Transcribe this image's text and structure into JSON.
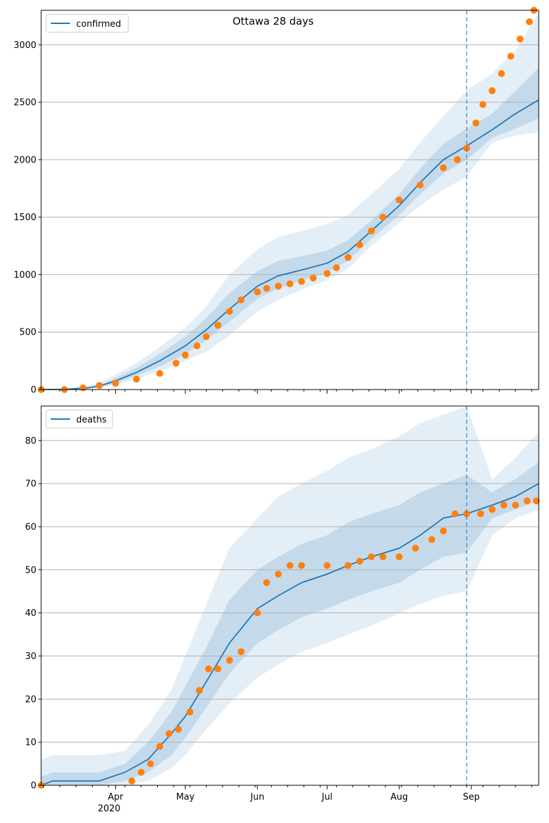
{
  "title": "Ottawa 28 days",
  "colors": {
    "model": "#1f77b4",
    "observed": "#ff7f0e",
    "band": "#1f77b4",
    "grid": "#b0b0b0",
    "forecast_line": "#1f77b4"
  },
  "x_axis": {
    "range": [
      "2020-02-29",
      "2020-09-30"
    ],
    "major_ticks": [
      {
        "date": "2020-04-01",
        "label": "Apr"
      },
      {
        "date": "2020-05-01",
        "label": "May"
      },
      {
        "date": "2020-06-01",
        "label": "Jun"
      },
      {
        "date": "2020-07-01",
        "label": "Jul"
      },
      {
        "date": "2020-08-01",
        "label": "Aug"
      },
      {
        "date": "2020-09-01",
        "label": "Sep"
      }
    ],
    "year_label": "2020",
    "forecast_start": "2020-08-30"
  },
  "chart_data": [
    {
      "type": "line",
      "legend": "confirmed",
      "legend_position": "upper-left",
      "grid": "horizontal",
      "ylim": [
        0,
        3300
      ],
      "yticks": [
        0,
        500,
        1000,
        1500,
        2000,
        2500,
        3000
      ],
      "model": {
        "x": [
          "2020-02-29",
          "2020-03-10",
          "2020-03-20",
          "2020-03-25",
          "2020-04-01",
          "2020-04-10",
          "2020-04-20",
          "2020-05-01",
          "2020-05-10",
          "2020-05-20",
          "2020-06-01",
          "2020-06-10",
          "2020-06-20",
          "2020-07-01",
          "2020-07-10",
          "2020-07-20",
          "2020-08-01",
          "2020-08-10",
          "2020-08-20",
          "2020-08-30",
          "2020-09-10",
          "2020-09-20",
          "2020-09-30"
        ],
        "y": [
          0,
          2,
          15,
          30,
          75,
          150,
          250,
          380,
          520,
          700,
          900,
          990,
          1040,
          1100,
          1200,
          1380,
          1600,
          1800,
          2000,
          2120,
          2260,
          2400,
          2520
        ],
        "band_outer_lo": [
          0,
          0,
          5,
          15,
          40,
          90,
          160,
          250,
          330,
          470,
          680,
          780,
          870,
          950,
          1050,
          1250,
          1450,
          1600,
          1740,
          1850,
          2150,
          2210,
          2240
        ],
        "band_outer_hi": [
          0,
          6,
          30,
          60,
          130,
          230,
          370,
          540,
          720,
          1000,
          1220,
          1330,
          1380,
          1440,
          1520,
          1700,
          1920,
          2150,
          2380,
          2600,
          2750,
          2950,
          3280
        ],
        "band_inner_lo": [
          0,
          1,
          10,
          22,
          55,
          120,
          200,
          310,
          430,
          590,
          790,
          880,
          950,
          1020,
          1120,
          1310,
          1520,
          1700,
          1880,
          2000,
          2190,
          2270,
          2360
        ],
        "band_inner_hi": [
          0,
          4,
          22,
          42,
          100,
          190,
          310,
          460,
          620,
          840,
          1030,
          1120,
          1160,
          1210,
          1300,
          1470,
          1700,
          1920,
          2140,
          2270,
          2400,
          2600,
          2800
        ]
      },
      "observed": {
        "x": [
          "2020-02-29",
          "2020-03-10",
          "2020-03-18",
          "2020-03-25",
          "2020-04-01",
          "2020-04-10",
          "2020-04-20",
          "2020-04-27",
          "2020-05-01",
          "2020-05-06",
          "2020-05-10",
          "2020-05-15",
          "2020-05-20",
          "2020-05-25",
          "2020-06-01",
          "2020-06-05",
          "2020-06-10",
          "2020-06-15",
          "2020-06-20",
          "2020-06-25",
          "2020-07-01",
          "2020-07-05",
          "2020-07-10",
          "2020-07-15",
          "2020-07-20",
          "2020-07-25",
          "2020-08-01",
          "2020-08-10",
          "2020-08-20",
          "2020-08-26",
          "2020-08-30",
          "2020-09-03",
          "2020-09-06",
          "2020-09-10",
          "2020-09-14",
          "2020-09-18",
          "2020-09-22",
          "2020-09-26",
          "2020-09-28"
        ],
        "y": [
          0,
          0,
          15,
          35,
          55,
          90,
          140,
          230,
          300,
          380,
          460,
          560,
          680,
          780,
          850,
          880,
          900,
          920,
          940,
          970,
          1010,
          1060,
          1150,
          1260,
          1380,
          1500,
          1650,
          1780,
          1930,
          2000,
          2100,
          2320,
          2480,
          2600,
          2750,
          2900,
          3050,
          3200,
          3300
        ]
      }
    },
    {
      "type": "line",
      "legend": "deaths",
      "legend_position": "upper-left",
      "grid": "horizontal",
      "ylim": [
        0,
        88
      ],
      "yticks": [
        0,
        10,
        20,
        30,
        40,
        50,
        60,
        70,
        80
      ],
      "model": {
        "x": [
          "2020-02-29",
          "2020-03-05",
          "2020-03-25",
          "2020-04-05",
          "2020-04-15",
          "2020-04-25",
          "2020-05-01",
          "2020-05-10",
          "2020-05-20",
          "2020-06-01",
          "2020-06-10",
          "2020-06-20",
          "2020-07-01",
          "2020-07-10",
          "2020-07-20",
          "2020-08-01",
          "2020-08-10",
          "2020-08-20",
          "2020-08-30",
          "2020-09-10",
          "2020-09-20",
          "2020-09-30"
        ],
        "y": [
          0,
          1,
          1,
          3,
          6,
          12,
          16,
          24,
          33,
          41,
          44,
          47,
          49,
          51,
          53,
          55,
          58,
          62,
          63,
          65,
          67,
          70
        ],
        "band_outer_lo": [
          0,
          0,
          0,
          0,
          1,
          4,
          7,
          13,
          19,
          25,
          28,
          31,
          33,
          35,
          37,
          40,
          42,
          44,
          45,
          58,
          62,
          64
        ],
        "band_outer_hi": [
          6,
          7,
          7,
          8,
          14,
          22,
          30,
          42,
          55,
          62,
          67,
          70,
          73,
          76,
          78,
          81,
          84,
          86,
          88,
          71,
          76,
          82
        ],
        "band_inner_lo": [
          0,
          0,
          0,
          1,
          3,
          7,
          11,
          18,
          26,
          33,
          36,
          39,
          41,
          43,
          45,
          47,
          50,
          53,
          54,
          62,
          64,
          66
        ],
        "band_inner_hi": [
          2,
          3,
          3,
          5,
          10,
          17,
          23,
          32,
          43,
          50,
          53,
          56,
          58,
          61,
          63,
          65,
          68,
          70,
          72,
          68,
          71,
          75
        ]
      },
      "observed": {
        "x": [
          "2020-02-29",
          "2020-04-08",
          "2020-04-12",
          "2020-04-16",
          "2020-04-20",
          "2020-04-24",
          "2020-04-28",
          "2020-05-03",
          "2020-05-07",
          "2020-05-11",
          "2020-05-15",
          "2020-05-20",
          "2020-05-25",
          "2020-06-01",
          "2020-06-05",
          "2020-06-10",
          "2020-06-15",
          "2020-06-20",
          "2020-07-01",
          "2020-07-10",
          "2020-07-15",
          "2020-07-20",
          "2020-07-25",
          "2020-08-01",
          "2020-08-08",
          "2020-08-15",
          "2020-08-20",
          "2020-08-25",
          "2020-08-30",
          "2020-09-05",
          "2020-09-10",
          "2020-09-15",
          "2020-09-20",
          "2020-09-25",
          "2020-09-29"
        ],
        "y": [
          0,
          1,
          3,
          5,
          9,
          12,
          13,
          17,
          22,
          27,
          27,
          29,
          31,
          40,
          47,
          49,
          51,
          51,
          51,
          51,
          52,
          53,
          53,
          53,
          55,
          57,
          59,
          63,
          63,
          63,
          64,
          65,
          65,
          66,
          66
        ]
      }
    }
  ]
}
